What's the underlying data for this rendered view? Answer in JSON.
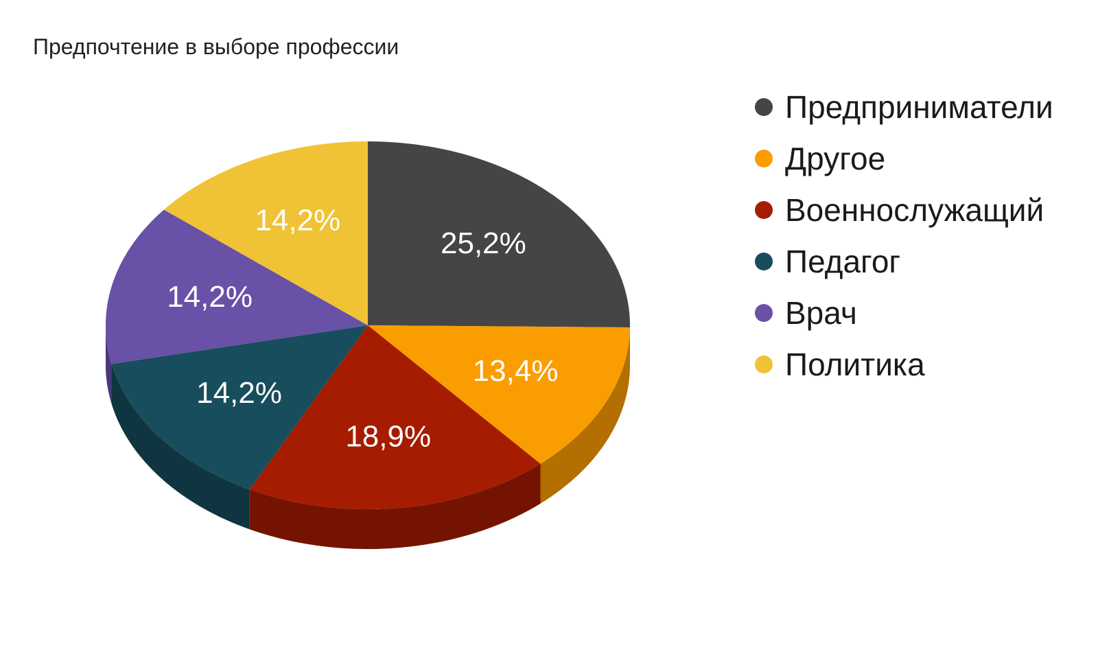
{
  "chart_data": {
    "type": "pie",
    "title": "Предпочтение в выборе профессии",
    "three_d": true,
    "start_angle": "top",
    "direction": "clockwise",
    "legend_position": "right",
    "categories": [
      "Предприниматели",
      "Другое",
      "Военнослужащий",
      "Педагог",
      "Врач",
      "Политика"
    ],
    "values": [
      25.2,
      13.4,
      18.9,
      14.2,
      14.2,
      14.2
    ],
    "labels": [
      "25,2%",
      "13,4%",
      "18,9%",
      "14,2%",
      "14,2%",
      "14,2%"
    ],
    "colors": [
      "#454545",
      "#FA9D00",
      "#A51C00",
      "#174D5C",
      "#6851A6",
      "#F0C235"
    ],
    "side_colors": [
      "#2E2E2E",
      "#B36F00",
      "#741400",
      "#0F3540",
      "#48387A",
      "#B38F20"
    ]
  }
}
